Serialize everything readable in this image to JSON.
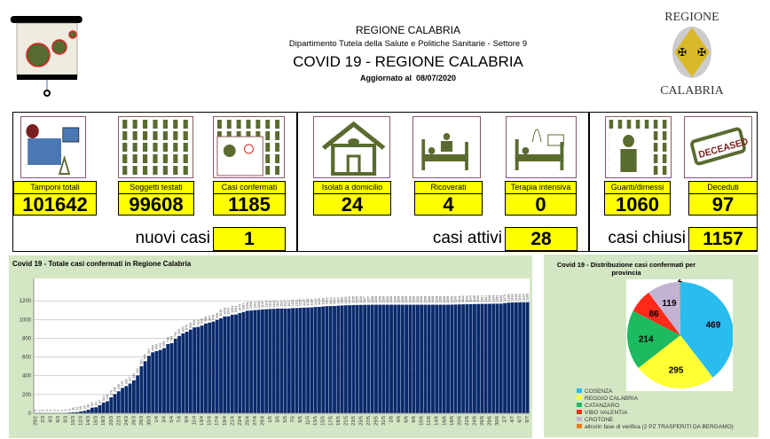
{
  "header": {
    "org": "REGIONE CALABRIA",
    "dept": "Dipartimento Tutela della Salute e Politiche Sanitarie - Settore 9",
    "title": "COVID 19 - REGIONE CALABRIA",
    "updated_label": "Aggiornato al",
    "updated_date": "08/07/2020",
    "logo_top": "REGIONE",
    "logo_bottom": "CALABRIA"
  },
  "kpis": [
    {
      "label": "Tamponi totali",
      "value": "101642",
      "icon": "lab-equipment-icon"
    },
    {
      "label": "Soggetti testati",
      "value": "99608",
      "icon": "people-grid-icon"
    },
    {
      "label": "Casi confermati",
      "value": "1185",
      "icon": "infected-person-icon"
    },
    {
      "label": "Isolati a domicilio",
      "value": "24",
      "icon": "house-icon"
    },
    {
      "label": "Ricoverati",
      "value": "4",
      "icon": "hospital-bed-icon"
    },
    {
      "label": "Terapia intensiva",
      "value": "0",
      "icon": "icu-bed-icon"
    },
    {
      "label": "Guariti/dimessi",
      "value": "1060",
      "icon": "recovered-person-icon"
    },
    {
      "label": "Deceduti",
      "value": "97",
      "icon": "deceased-stamp-icon"
    }
  ],
  "deceased_stamp": "DECEASED",
  "summary": [
    {
      "label": "nuovi casi",
      "value": "1"
    },
    {
      "label": "casi attivi",
      "value": "28"
    },
    {
      "label": "casi chiusi",
      "value": "1157"
    }
  ],
  "colors": {
    "accent_yellow": "#ffff00",
    "icon_green": "#5a6b2f",
    "bar": "#0a2a6b",
    "panel": "#d4e7c5"
  },
  "chart_data": [
    {
      "type": "bar",
      "title": "Covid 19 - Totale casi confermati in Regione Calabria",
      "ylim": [
        0,
        1400
      ],
      "yticks": [
        0,
        200,
        400,
        600,
        800,
        1000,
        1200
      ],
      "grid": true,
      "categories": [
        "29/2",
        "1/3",
        "2/3",
        "3/3",
        "4/3",
        "5/3",
        "6/3",
        "7/3",
        "8/3",
        "9/3",
        "10/3",
        "11/3",
        "12/3",
        "13/3",
        "14/3",
        "15/3",
        "16/3",
        "17/3",
        "18/3",
        "19/3",
        "20/3",
        "21/3",
        "22/3",
        "23/3",
        "24/3",
        "25/3",
        "26/3",
        "27/3",
        "28/3",
        "29/3",
        "30/3",
        "31/3",
        "1/4",
        "2/4",
        "3/4",
        "4/4",
        "5/4",
        "6/4",
        "7/4",
        "8/4",
        "9/4",
        "10/4",
        "11/4",
        "12/4",
        "13/4",
        "14/4",
        "15/4",
        "16/4",
        "17/4",
        "18/4",
        "19/4",
        "20/4",
        "21/4",
        "22/4",
        "23/4",
        "24/4",
        "25/4",
        "26/4",
        "27/4",
        "28/4",
        "29/4",
        "30/4",
        "1/5",
        "2/5",
        "3/5",
        "4/5",
        "5/5",
        "6/5",
        "7/5",
        "8/5",
        "9/5",
        "10/5",
        "11/5",
        "12/5",
        "13/5",
        "14/5",
        "15/5",
        "16/5",
        "17/5",
        "18/5",
        "19/5",
        "20/5",
        "21/5",
        "22/5",
        "23/5",
        "24/5",
        "25/5",
        "26/5",
        "27/5",
        "28/5",
        "29/5",
        "30/5",
        "31/5",
        "1/6",
        "2/6",
        "3/6",
        "4/6",
        "5/6",
        "6/6",
        "7/6",
        "8/6",
        "9/6",
        "10/6",
        "11/6",
        "12/6",
        "13/6",
        "14/6",
        "15/6",
        "16/6",
        "17/6",
        "18/6",
        "19/6",
        "20/6",
        "21/6",
        "22/6",
        "23/6",
        "24/6",
        "25/6",
        "26/6",
        "27/6",
        "28/6",
        "29/6",
        "30/6",
        "1/7",
        "2/7",
        "3/7",
        "4/7",
        "5/7",
        "6/7",
        "7/7",
        "8/7"
      ],
      "values": [
        1,
        1,
        1,
        1,
        1,
        1,
        2,
        2,
        5,
        8,
        11,
        13,
        19,
        26,
        38,
        60,
        64,
        87,
        114,
        128,
        170,
        205,
        235,
        270,
        290,
        317,
        352,
        404,
        501,
        555,
        613,
        650,
        664,
        676,
        695,
        738,
        748,
        794,
        825,
        852,
        870,
        893,
        916,
        922,
        936,
        958,
        967,
        978,
        996,
        1013,
        1033,
        1034,
        1051,
        1054,
        1070,
        1081,
        1094,
        1096,
        1101,
        1104,
        1107,
        1110,
        1113,
        1114,
        1117,
        1117,
        1117,
        1117,
        1122,
        1122,
        1125,
        1127,
        1128,
        1130,
        1134,
        1135,
        1139,
        1143,
        1144,
        1144,
        1147,
        1150,
        1152,
        1153,
        1155,
        1155,
        1156,
        1157,
        1157,
        1158,
        1158,
        1158,
        1158,
        1158,
        1158,
        1158,
        1158,
        1158,
        1158,
        1158,
        1158,
        1158,
        1158,
        1158,
        1158,
        1158,
        1158,
        1158,
        1158,
        1158,
        1159,
        1160,
        1161,
        1162,
        1163,
        1164,
        1165,
        1166,
        1167,
        1167,
        1168,
        1169,
        1169,
        1169,
        1175,
        1180,
        1182,
        1183,
        1184,
        1184,
        1185
      ]
    },
    {
      "type": "pie",
      "title": "Covid 19 - Distribuzione casi confermati per provincia",
      "legend": "bottom",
      "slices": [
        {
          "name": "COSENZA",
          "value": 469,
          "color": "#29bdef"
        },
        {
          "name": "REGGIO CALABRIA",
          "value": 295,
          "color": "#ffff33"
        },
        {
          "name": "CATANZARO",
          "value": 214,
          "color": "#1dbb5f"
        },
        {
          "name": "VIBO VALENTIA",
          "value": 86,
          "color": "#ff2a1a"
        },
        {
          "name": "CROTONE",
          "value": 119,
          "color": "#c3b3d3"
        },
        {
          "name": "altro/in fase di verifica (2 PZ TRASFERITI DA BERGAMO)",
          "value": 2,
          "color": "#e67e22"
        }
      ]
    }
  ]
}
